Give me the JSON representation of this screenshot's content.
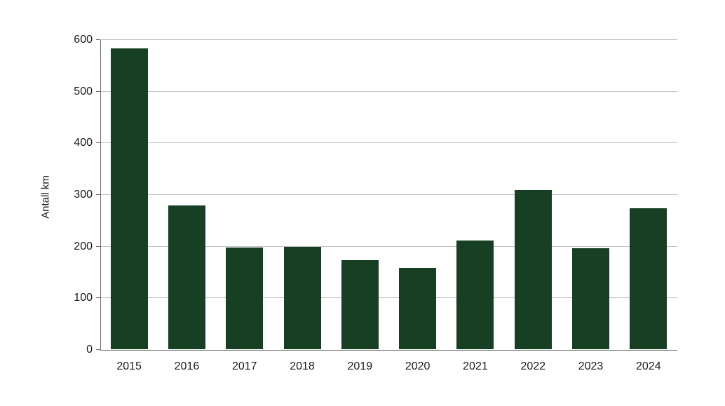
{
  "chart_data": {
    "type": "bar",
    "title": "",
    "xlabel": "",
    "ylabel": "Antall km",
    "categories": [
      "2015",
      "2016",
      "2017",
      "2018",
      "2019",
      "2020",
      "2021",
      "2022",
      "2023",
      "2024"
    ],
    "values": [
      583,
      278,
      197,
      198,
      173,
      157,
      210,
      308,
      196,
      273
    ],
    "ylim": [
      0,
      600
    ],
    "yticks": [
      0,
      100,
      200,
      300,
      400,
      500,
      600
    ],
    "grid": "horizontal",
    "legend": "none",
    "colors": {
      "bar": "#163f23",
      "gridline": "#c3c3c3",
      "axis": "#6e6e6e",
      "text": "#1a1a1a",
      "background": "#ffffff"
    }
  }
}
